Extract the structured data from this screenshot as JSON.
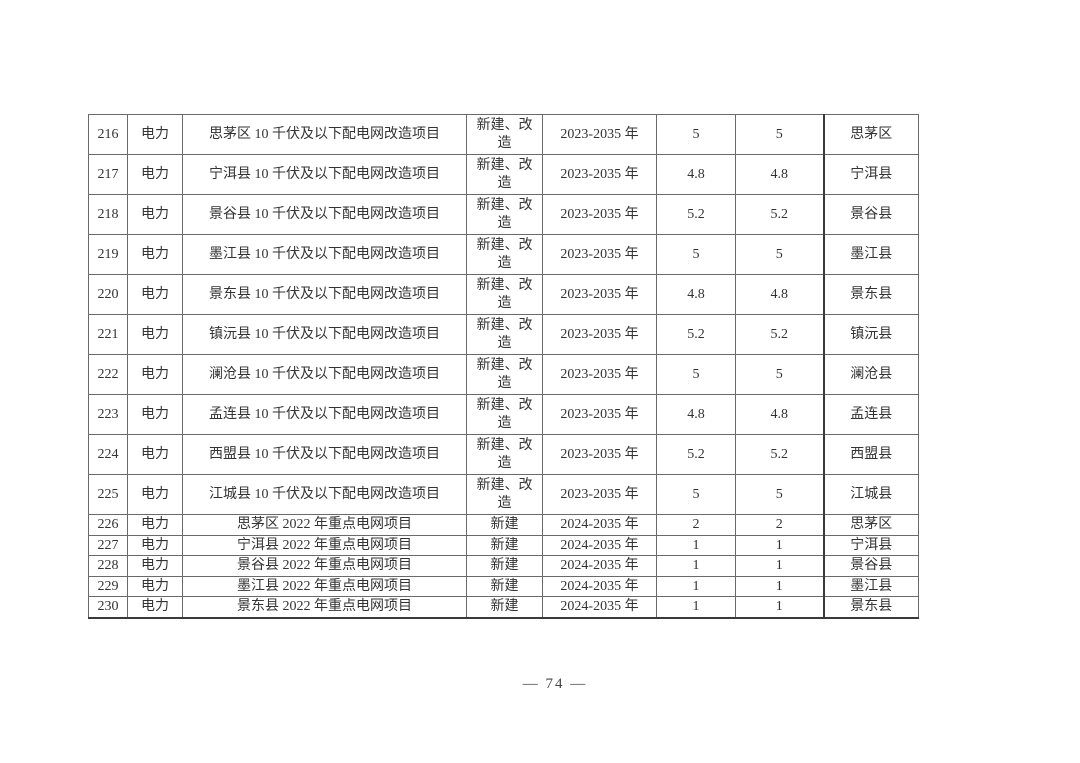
{
  "footer": {
    "page_number": "— 74 —"
  },
  "table": {
    "column_keys": [
      "no",
      "sector",
      "project-name",
      "construction-type",
      "period",
      "investment-a",
      "investment-b",
      "location"
    ],
    "rows": [
      {
        "tall": true,
        "cells": [
          "216",
          "电力",
          "思茅区 10 千伏及以下配电网改造项目",
          "新建、改造",
          "2023-2035 年",
          "5",
          "5",
          "思茅区"
        ]
      },
      {
        "tall": true,
        "cells": [
          "217",
          "电力",
          "宁洱县 10 千伏及以下配电网改造项目",
          "新建、改造",
          "2023-2035 年",
          "4.8",
          "4.8",
          "宁洱县"
        ]
      },
      {
        "tall": true,
        "cells": [
          "218",
          "电力",
          "景谷县 10 千伏及以下配电网改造项目",
          "新建、改造",
          "2023-2035 年",
          "5.2",
          "5.2",
          "景谷县"
        ]
      },
      {
        "tall": true,
        "cells": [
          "219",
          "电力",
          "墨江县 10 千伏及以下配电网改造项目",
          "新建、改造",
          "2023-2035 年",
          "5",
          "5",
          "墨江县"
        ]
      },
      {
        "tall": true,
        "cells": [
          "220",
          "电力",
          "景东县 10 千伏及以下配电网改造项目",
          "新建、改造",
          "2023-2035 年",
          "4.8",
          "4.8",
          "景东县"
        ]
      },
      {
        "tall": true,
        "cells": [
          "221",
          "电力",
          "镇沅县 10 千伏及以下配电网改造项目",
          "新建、改造",
          "2023-2035 年",
          "5.2",
          "5.2",
          "镇沅县"
        ]
      },
      {
        "tall": true,
        "cells": [
          "222",
          "电力",
          "澜沧县 10 千伏及以下配电网改造项目",
          "新建、改造",
          "2023-2035 年",
          "5",
          "5",
          "澜沧县"
        ]
      },
      {
        "tall": true,
        "cells": [
          "223",
          "电力",
          "孟连县 10 千伏及以下配电网改造项目",
          "新建、改造",
          "2023-2035 年",
          "4.8",
          "4.8",
          "孟连县"
        ]
      },
      {
        "tall": true,
        "cells": [
          "224",
          "电力",
          "西盟县 10 千伏及以下配电网改造项目",
          "新建、改造",
          "2023-2035 年",
          "5.2",
          "5.2",
          "西盟县"
        ]
      },
      {
        "tall": true,
        "cells": [
          "225",
          "电力",
          "江城县 10 千伏及以下配电网改造项目",
          "新建、改造",
          "2023-2035 年",
          "5",
          "5",
          "江城县"
        ]
      },
      {
        "tall": false,
        "cells": [
          "226",
          "电力",
          "思茅区 2022 年重点电网项目",
          "新建",
          "2024-2035 年",
          "2",
          "2",
          "思茅区"
        ]
      },
      {
        "tall": false,
        "cells": [
          "227",
          "电力",
          "宁洱县 2022 年重点电网项目",
          "新建",
          "2024-2035 年",
          "1",
          "1",
          "宁洱县"
        ]
      },
      {
        "tall": false,
        "cells": [
          "228",
          "电力",
          "景谷县 2022 年重点电网项目",
          "新建",
          "2024-2035 年",
          "1",
          "1",
          "景谷县"
        ]
      },
      {
        "tall": false,
        "cells": [
          "229",
          "电力",
          "墨江县 2022 年重点电网项目",
          "新建",
          "2024-2035 年",
          "1",
          "1",
          "墨江县"
        ]
      },
      {
        "tall": false,
        "cells": [
          "230",
          "电力",
          "景东县 2022 年重点电网项目",
          "新建",
          "2024-2035 年",
          "1",
          "1",
          "景东县"
        ]
      }
    ]
  }
}
